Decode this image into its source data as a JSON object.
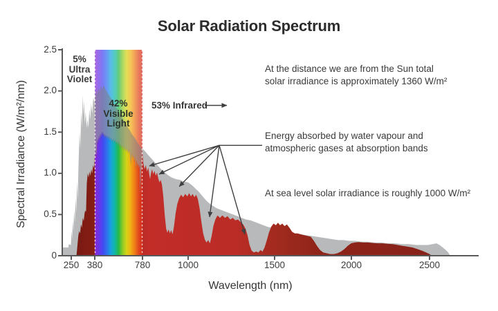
{
  "title": "Solar Radiation Spectrum",
  "labels": {
    "uv": [
      "5%",
      "Ultra",
      "Violet"
    ],
    "visible": [
      "42%",
      "Visible",
      "Light"
    ],
    "infrared": "53% Infrared"
  },
  "annotations": {
    "space_irradiance": [
      "At the distance we are from the Sun total",
      "solar irradiance is approximately 1360 W/m²"
    ],
    "absorption": [
      "Energy absorbed by water vapour and",
      "atmospheric gases at absorption bands"
    ],
    "sea_level": "At sea level solar irradiance is roughly 1000 W/m²"
  },
  "chart_data": {
    "type": "area",
    "title": "Solar Radiation Spectrum",
    "xlabel": "Wavelength (nm)",
    "ylabel": "Spectral Irradiance (W/m²/nm)",
    "ylim": [
      0,
      2.5
    ],
    "grid": false,
    "legend": "none",
    "x_ticks": [
      "250",
      "380",
      "780",
      "1000",
      "1500",
      "2000",
      "2500"
    ],
    "x_tick_values": [
      250,
      380,
      780,
      1000,
      1500,
      2000,
      2500
    ],
    "y_ticks": [
      "2.5",
      "2.0",
      "1.5",
      "1.0",
      "0.5",
      "0"
    ],
    "y_tick_values": [
      2.5,
      2.0,
      1.5,
      1.0,
      0.5,
      0
    ],
    "visible_band_nm": [
      380,
      780
    ],
    "colors": {
      "extraterrestrial_fill": "rgba(125,128,130,0.55)",
      "sea_level_bright": "#c22d28",
      "sea_level_dark": "#7d1a12",
      "axis": "#58595b",
      "text": "#3a3a3a",
      "band_dash": "rgba(255,255,255,0.8)",
      "spectrum": [
        "#8a2bd0",
        "#6a35e8",
        "#4448f0",
        "#2f6ff0",
        "#18a0e0",
        "#10b8a8",
        "#28b948",
        "#8cc926",
        "#d8d316",
        "#f0b014",
        "#ef7e18",
        "#e0491c",
        "#d32a20"
      ]
    },
    "series": {
      "extraterrestrial": [
        [
          196,
          0
        ],
        [
          198,
          0.1
        ],
        [
          232,
          0.1
        ],
        [
          236,
          0.14
        ],
        [
          248,
          0.13
        ],
        [
          252,
          0.3
        ],
        [
          255,
          0.2
        ],
        [
          258,
          0.42
        ],
        [
          262,
          0.3
        ],
        [
          266,
          0.55
        ],
        [
          270,
          0.4
        ],
        [
          274,
          0.7
        ],
        [
          278,
          0.52
        ],
        [
          282,
          0.9
        ],
        [
          286,
          0.68
        ],
        [
          290,
          1.1
        ],
        [
          296,
          1.5
        ],
        [
          300,
          1.3
        ],
        [
          305,
          1.75
        ],
        [
          309,
          1.55
        ],
        [
          313,
          1.95
        ],
        [
          317,
          1.7
        ],
        [
          321,
          1.88
        ],
        [
          325,
          1.6
        ],
        [
          330,
          1.75
        ],
        [
          335,
          1.55
        ],
        [
          340,
          1.65
        ],
        [
          345,
          1.55
        ],
        [
          350,
          1.78
        ],
        [
          355,
          1.65
        ],
        [
          360,
          1.85
        ],
        [
          366,
          1.72
        ],
        [
          372,
          1.92
        ],
        [
          378,
          1.85
        ],
        [
          383,
          2.0
        ],
        [
          390,
          1.93
        ],
        [
          397,
          2.02
        ],
        [
          404,
          1.96
        ],
        [
          412,
          2.04
        ],
        [
          422,
          1.99
        ],
        [
          432,
          2.06
        ],
        [
          443,
          2.02
        ],
        [
          454,
          2.07
        ],
        [
          466,
          2.03
        ],
        [
          478,
          2.0
        ],
        [
          490,
          1.97
        ],
        [
          503,
          1.94
        ],
        [
          516,
          1.91
        ],
        [
          530,
          1.87
        ],
        [
          544,
          1.84
        ],
        [
          558,
          1.8
        ],
        [
          572,
          1.77
        ],
        [
          586,
          1.73
        ],
        [
          600,
          1.7
        ],
        [
          615,
          1.66
        ],
        [
          630,
          1.62
        ],
        [
          645,
          1.59
        ],
        [
          660,
          1.55
        ],
        [
          675,
          1.52
        ],
        [
          690,
          1.48
        ],
        [
          705,
          1.45
        ],
        [
          720,
          1.42
        ],
        [
          735,
          1.38
        ],
        [
          750,
          1.35
        ],
        [
          765,
          1.32
        ],
        [
          780,
          1.3
        ],
        [
          795,
          1.26
        ],
        [
          812,
          1.21
        ],
        [
          830,
          1.16
        ],
        [
          848,
          1.11
        ],
        [
          866,
          1.06
        ],
        [
          884,
          1.02
        ],
        [
          902,
          0.98
        ],
        [
          920,
          0.95
        ],
        [
          940,
          0.93
        ],
        [
          960,
          0.92
        ],
        [
          980,
          0.9
        ],
        [
          1000,
          0.89
        ],
        [
          1020,
          0.86
        ],
        [
          1040,
          0.82
        ],
        [
          1060,
          0.78
        ],
        [
          1080,
          0.73
        ],
        [
          1100,
          0.68
        ],
        [
          1120,
          0.64
        ],
        [
          1140,
          0.61
        ],
        [
          1162,
          0.58
        ],
        [
          1185,
          0.56
        ],
        [
          1210,
          0.54
        ],
        [
          1235,
          0.52
        ],
        [
          1260,
          0.5
        ],
        [
          1285,
          0.48
        ],
        [
          1310,
          0.46
        ],
        [
          1335,
          0.44
        ],
        [
          1360,
          0.43
        ],
        [
          1385,
          0.41
        ],
        [
          1410,
          0.39
        ],
        [
          1435,
          0.37
        ],
        [
          1460,
          0.35
        ],
        [
          1485,
          0.34
        ],
        [
          1510,
          0.32
        ],
        [
          1540,
          0.3
        ],
        [
          1570,
          0.29
        ],
        [
          1600,
          0.28
        ],
        [
          1635,
          0.27
        ],
        [
          1670,
          0.26
        ],
        [
          1705,
          0.25
        ],
        [
          1740,
          0.24
        ],
        [
          1775,
          0.23
        ],
        [
          1810,
          0.22
        ],
        [
          1845,
          0.21
        ],
        [
          1880,
          0.2
        ],
        [
          1915,
          0.19
        ],
        [
          1950,
          0.19
        ],
        [
          1985,
          0.18
        ],
        [
          2020,
          0.18
        ],
        [
          2060,
          0.17
        ],
        [
          2100,
          0.17
        ],
        [
          2145,
          0.16
        ],
        [
          2190,
          0.16
        ],
        [
          2235,
          0.15
        ],
        [
          2280,
          0.15
        ],
        [
          2325,
          0.14
        ],
        [
          2370,
          0.14
        ],
        [
          2415,
          0.13
        ],
        [
          2455,
          0.13
        ],
        [
          2490,
          0.13
        ],
        [
          2520,
          0.14
        ],
        [
          2545,
          0.15
        ],
        [
          2565,
          0.13
        ],
        [
          2585,
          0.1
        ],
        [
          2605,
          0.07
        ],
        [
          2620,
          0.04
        ],
        [
          2633,
          0
        ]
      ],
      "sea_level": [
        [
          279,
          0
        ],
        [
          284,
          0.12
        ],
        [
          289,
          0.24
        ],
        [
          294,
          0.3
        ],
        [
          299,
          0.27
        ],
        [
          304,
          0.38
        ],
        [
          309,
          0.34
        ],
        [
          314,
          0.46
        ],
        [
          319,
          0.42
        ],
        [
          324,
          0.52
        ],
        [
          328,
          0.55
        ],
        [
          332,
          0.53
        ],
        [
          336,
          0.88
        ],
        [
          341,
          1.0
        ],
        [
          346,
          0.95
        ],
        [
          351,
          1.02
        ],
        [
          356,
          0.97
        ],
        [
          361,
          1.05
        ],
        [
          366,
          1.0
        ],
        [
          371,
          1.1
        ],
        [
          376,
          1.06
        ],
        [
          381,
          1.26
        ],
        [
          386,
          1.18
        ],
        [
          391,
          1.28
        ],
        [
          396,
          1.2
        ],
        [
          401,
          1.42
        ],
        [
          406,
          1.36
        ],
        [
          411,
          1.44
        ],
        [
          416,
          1.39
        ],
        [
          421,
          1.47
        ],
        [
          426,
          1.41
        ],
        [
          431,
          1.49
        ],
        [
          436,
          1.44
        ],
        [
          441,
          1.51
        ],
        [
          446,
          1.46
        ],
        [
          451,
          1.5
        ],
        [
          456,
          1.44
        ],
        [
          461,
          1.48
        ],
        [
          467,
          1.43
        ],
        [
          474,
          1.47
        ],
        [
          481,
          1.42
        ],
        [
          488,
          1.46
        ],
        [
          495,
          1.41
        ],
        [
          502,
          1.45
        ],
        [
          509,
          1.4
        ],
        [
          517,
          1.43
        ],
        [
          525,
          1.38
        ],
        [
          533,
          1.42
        ],
        [
          541,
          1.37
        ],
        [
          549,
          1.41
        ],
        [
          557,
          1.36
        ],
        [
          565,
          1.39
        ],
        [
          573,
          1.34
        ],
        [
          581,
          1.38
        ],
        [
          589,
          1.32
        ],
        [
          597,
          1.36
        ],
        [
          606,
          1.3
        ],
        [
          615,
          1.34
        ],
        [
          624,
          1.28
        ],
        [
          633,
          1.32
        ],
        [
          642,
          1.26
        ],
        [
          651,
          1.3
        ],
        [
          660,
          1.24
        ],
        [
          669,
          1.28
        ],
        [
          677,
          1.2
        ],
        [
          684,
          1.1
        ],
        [
          690,
          1.24
        ],
        [
          697,
          1.18
        ],
        [
          704,
          1.22
        ],
        [
          711,
          1.14
        ],
        [
          718,
          1.2
        ],
        [
          725,
          1.05
        ],
        [
          731,
          1.16
        ],
        [
          738,
          1.08
        ],
        [
          744,
          1.12
        ],
        [
          750,
          1.06
        ],
        [
          755,
          1.1
        ],
        [
          759,
          0.82
        ],
        [
          762,
          0.74
        ],
        [
          765,
          0.9
        ],
        [
          769,
          1.06
        ],
        [
          774,
          1.02
        ],
        [
          779,
          1.28
        ],
        [
          784,
          1.12
        ],
        [
          790,
          1.05
        ],
        [
          796,
          1.1
        ],
        [
          802,
          1.02
        ],
        [
          808,
          1.07
        ],
        [
          813,
          0.98
        ],
        [
          817,
          0.93
        ],
        [
          821,
          1.0
        ],
        [
          826,
          1.05
        ],
        [
          832,
          0.99
        ],
        [
          838,
          1.03
        ],
        [
          844,
          0.97
        ],
        [
          850,
          1.01
        ],
        [
          856,
          0.94
        ],
        [
          862,
          0.89
        ],
        [
          868,
          0.92
        ],
        [
          874,
          0.86
        ],
        [
          880,
          0.73
        ],
        [
          887,
          0.5
        ],
        [
          894,
          0.33
        ],
        [
          900,
          0.28
        ],
        [
          906,
          0.32
        ],
        [
          912,
          0.27
        ],
        [
          918,
          0.31
        ],
        [
          925,
          0.26
        ],
        [
          932,
          0.36
        ],
        [
          940,
          0.52
        ],
        [
          948,
          0.63
        ],
        [
          957,
          0.7
        ],
        [
          966,
          0.74
        ],
        [
          976,
          0.71
        ],
        [
          986,
          0.75
        ],
        [
          996,
          0.72
        ],
        [
          1006,
          0.76
        ],
        [
          1016,
          0.72
        ],
        [
          1026,
          0.75
        ],
        [
          1036,
          0.71
        ],
        [
          1046,
          0.74
        ],
        [
          1056,
          0.69
        ],
        [
          1066,
          0.58
        ],
        [
          1076,
          0.42
        ],
        [
          1086,
          0.28
        ],
        [
          1096,
          0.2
        ],
        [
          1106,
          0.16
        ],
        [
          1116,
          0.19
        ],
        [
          1126,
          0.15
        ],
        [
          1136,
          0.24
        ],
        [
          1146,
          0.36
        ],
        [
          1157,
          0.44
        ],
        [
          1170,
          0.49
        ],
        [
          1184,
          0.46
        ],
        [
          1198,
          0.49
        ],
        [
          1213,
          0.46
        ],
        [
          1228,
          0.48
        ],
        [
          1243,
          0.44
        ],
        [
          1258,
          0.46
        ],
        [
          1273,
          0.43
        ],
        [
          1288,
          0.44
        ],
        [
          1303,
          0.41
        ],
        [
          1318,
          0.38
        ],
        [
          1331,
          0.33
        ],
        [
          1343,
          0.25
        ],
        [
          1355,
          0.13
        ],
        [
          1367,
          0.06
        ],
        [
          1380,
          0.04
        ],
        [
          1393,
          0.05
        ],
        [
          1406,
          0.04
        ],
        [
          1419,
          0.07
        ],
        [
          1430,
          0.05
        ],
        [
          1442,
          0.1
        ],
        [
          1454,
          0.18
        ],
        [
          1467,
          0.28
        ],
        [
          1480,
          0.35
        ],
        [
          1494,
          0.39
        ],
        [
          1508,
          0.37
        ],
        [
          1522,
          0.4
        ],
        [
          1536,
          0.37
        ],
        [
          1550,
          0.39
        ],
        [
          1565,
          0.36
        ],
        [
          1580,
          0.38
        ],
        [
          1597,
          0.34
        ],
        [
          1614,
          0.29
        ],
        [
          1632,
          0.27
        ],
        [
          1650,
          0.27
        ],
        [
          1670,
          0.26
        ],
        [
          1692,
          0.25
        ],
        [
          1714,
          0.24
        ],
        [
          1736,
          0.23
        ],
        [
          1756,
          0.18
        ],
        [
          1776,
          0.12
        ],
        [
          1796,
          0.07
        ],
        [
          1816,
          0.04
        ],
        [
          1838,
          0.03
        ],
        [
          1862,
          0.02
        ],
        [
          1886,
          0.02
        ],
        [
          1910,
          0.03
        ],
        [
          1932,
          0.05
        ],
        [
          1954,
          0.08
        ],
        [
          1976,
          0.12
        ],
        [
          1998,
          0.15
        ],
        [
          2022,
          0.16
        ],
        [
          2048,
          0.165
        ],
        [
          2076,
          0.16
        ],
        [
          2106,
          0.16
        ],
        [
          2136,
          0.155
        ],
        [
          2168,
          0.15
        ],
        [
          2200,
          0.15
        ],
        [
          2232,
          0.145
        ],
        [
          2264,
          0.14
        ],
        [
          2296,
          0.13
        ],
        [
          2328,
          0.12
        ],
        [
          2360,
          0.11
        ],
        [
          2392,
          0.1
        ],
        [
          2424,
          0.08
        ],
        [
          2452,
          0.06
        ],
        [
          2478,
          0.04
        ],
        [
          2500,
          0.02
        ],
        [
          2515,
          0
        ]
      ]
    },
    "absorption_arrows": {
      "hub": [
        1180,
        1.34
      ],
      "tips": [
        [
          813,
          1.09
        ],
        [
          860,
          0.99
        ],
        [
          957,
          0.84
        ],
        [
          1124,
          0.47
        ],
        [
          1328,
          0.26
        ]
      ]
    }
  }
}
